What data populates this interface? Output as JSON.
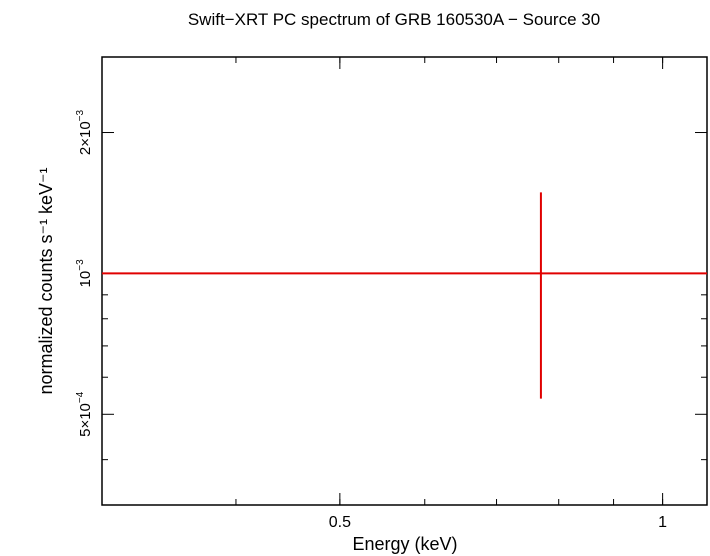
{
  "chart_data": {
    "type": "scatter",
    "title": "Swift−XRT PC spectrum of GRB 160530A − Source 30",
    "xlabel": "Energy (keV)",
    "ylabel": "normalized counts s⁻¹ keV⁻¹",
    "x_scale": "log",
    "y_scale": "log",
    "xlim": [
      0.3,
      1.1
    ],
    "ylim": [
      0.00032,
      0.0029
    ],
    "x_ticks": [
      {
        "value": 0.5,
        "label": "0.5"
      },
      {
        "value": 1,
        "label": "1"
      }
    ],
    "y_ticks": [
      {
        "value": 0.0005,
        "mantissa": "5×10",
        "exponent": "−4"
      },
      {
        "value": 0.001,
        "mantissa": "10",
        "exponent": "−3"
      },
      {
        "value": 0.002,
        "mantissa": "2×10",
        "exponent": "−3"
      }
    ],
    "series": [
      {
        "color": "#e00000",
        "points": [
          {
            "x": 0.77,
            "y": 0.001,
            "x_low": 0.3,
            "x_high": 1.1,
            "y_low": 0.00054,
            "y_high": 0.00149
          }
        ]
      }
    ],
    "grid": false,
    "legend": "none"
  }
}
